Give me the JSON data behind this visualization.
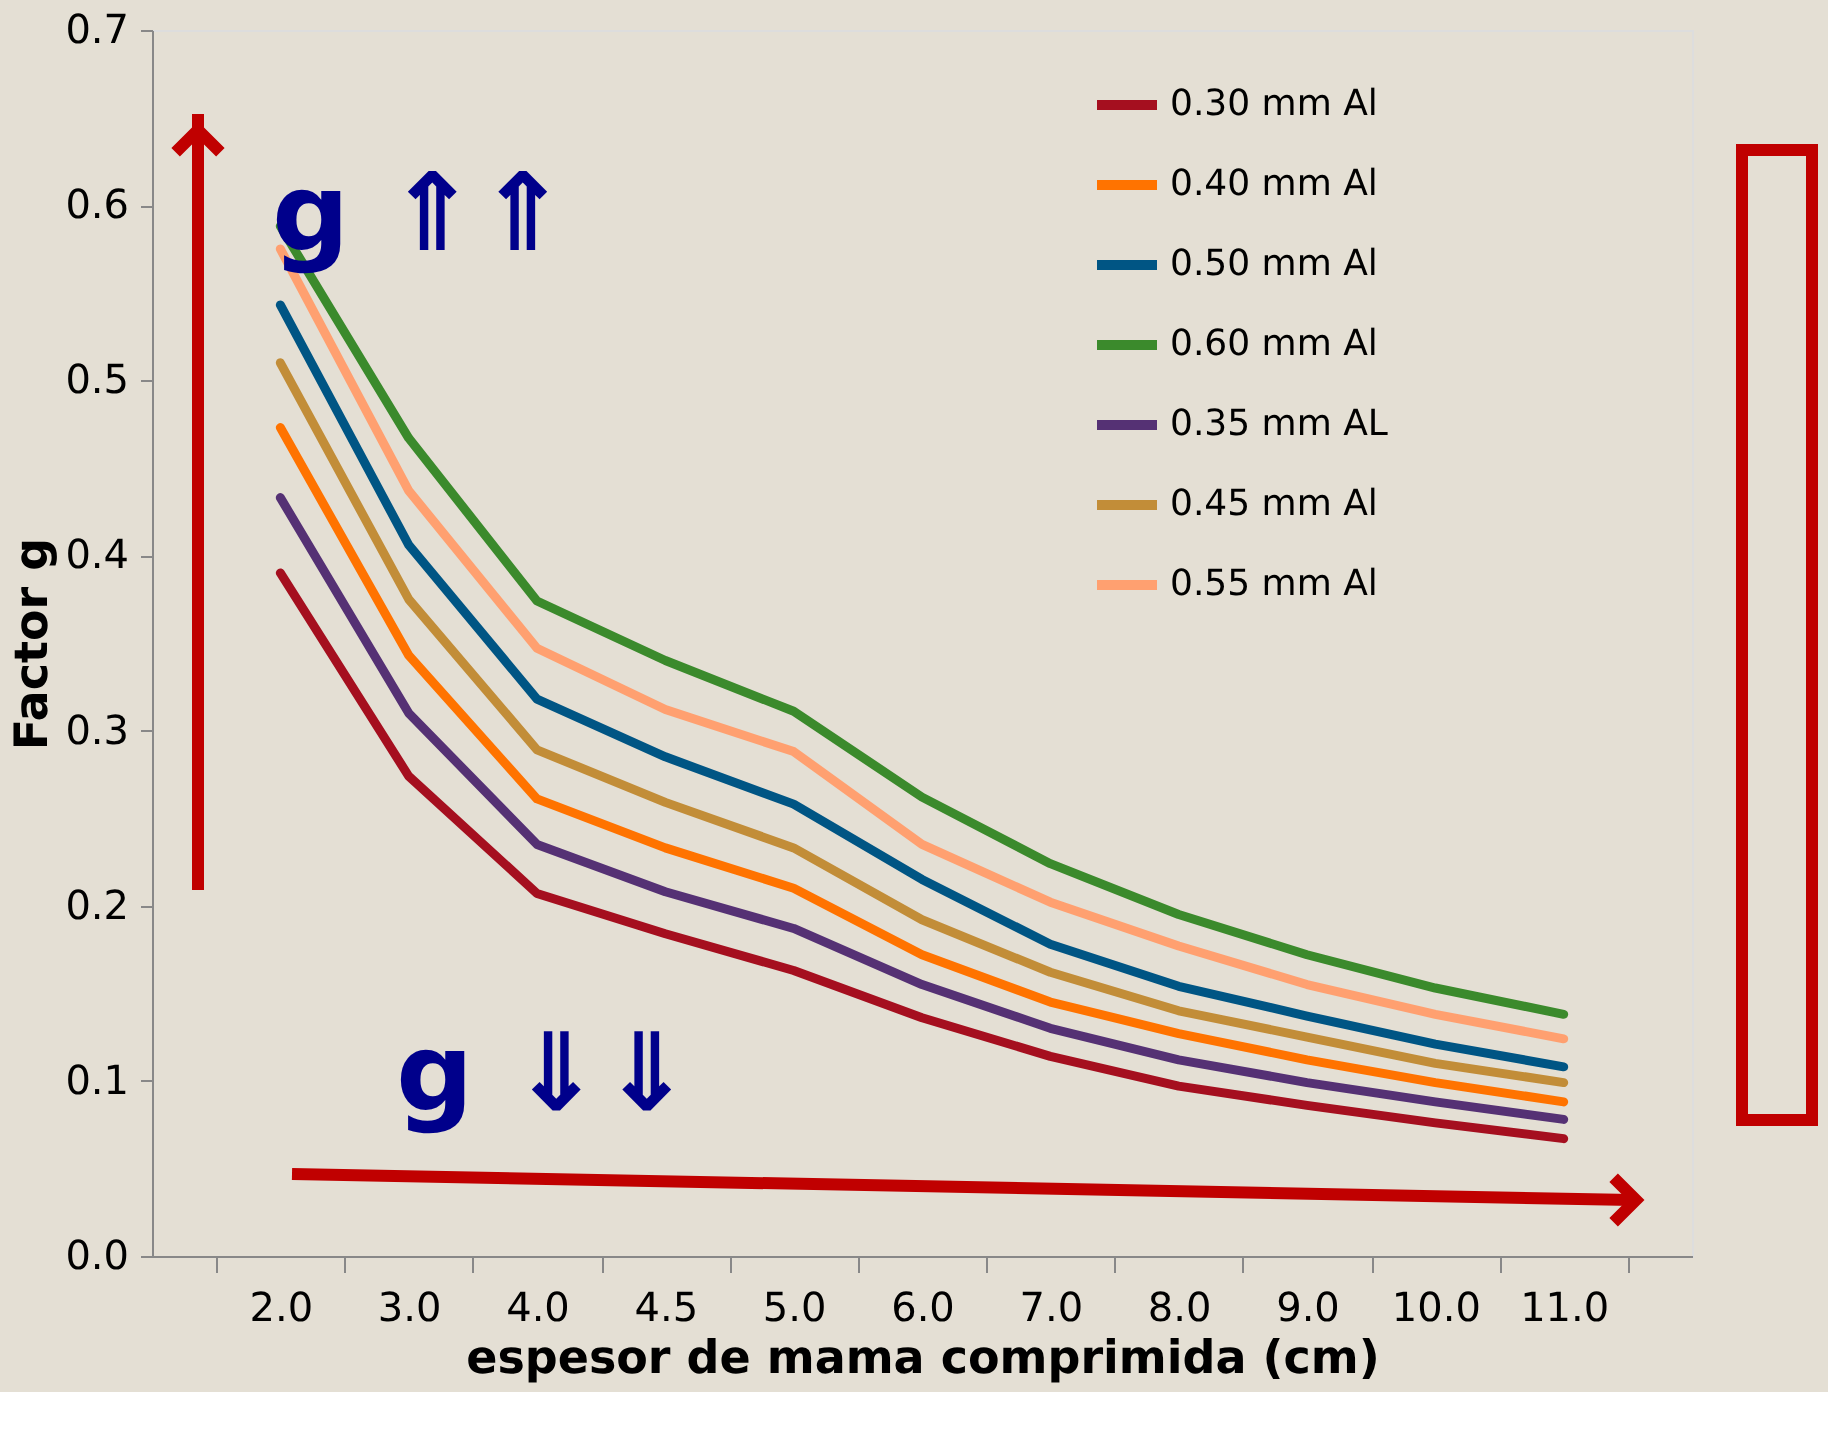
{
  "chart_data": {
    "type": "line",
    "xlabel": "espesor de mama comprimida (cm)",
    "ylabel": "Factor g",
    "categories": [
      "2.0",
      "3.0",
      "4.0",
      "4.5",
      "5.0",
      "6.0",
      "7.0",
      "8.0",
      "9.0",
      "10.0",
      "11.0"
    ],
    "series": [
      {
        "name": "0.30 mm Al",
        "color": "#a50f1f",
        "values": [
          0.39,
          0.274,
          0.207,
          0.184,
          0.163,
          0.136,
          0.114,
          0.097,
          0.086,
          0.076,
          0.067
        ]
      },
      {
        "name": "0.40 mm Al",
        "color": "#ff7300",
        "values": [
          0.473,
          0.343,
          0.261,
          0.233,
          0.21,
          0.172,
          0.145,
          0.127,
          0.112,
          0.099,
          0.088
        ]
      },
      {
        "name": "0.50 mm Al",
        "color": "#005584",
        "values": [
          0.543,
          0.406,
          0.318,
          0.285,
          0.258,
          0.215,
          0.178,
          0.154,
          0.137,
          0.121,
          0.108
        ]
      },
      {
        "name": "0.60 mm Al",
        "color": "#3b8a2c",
        "values": [
          0.588,
          0.467,
          0.374,
          0.34,
          0.311,
          0.262,
          0.224,
          0.195,
          0.172,
          0.153,
          0.138
        ]
      },
      {
        "name": "0.35 mm AL",
        "color": "#553174",
        "values": [
          0.433,
          0.31,
          0.235,
          0.208,
          0.187,
          0.155,
          0.13,
          0.112,
          0.099,
          0.088,
          0.078
        ]
      },
      {
        "name": "0.45 mm Al",
        "color": "#c28d38",
        "values": [
          0.51,
          0.375,
          0.289,
          0.259,
          0.233,
          0.192,
          0.162,
          0.14,
          0.125,
          0.11,
          0.099
        ]
      },
      {
        "name": "0.55 mm Al",
        "color": "#ffa070",
        "values": [
          0.575,
          0.437,
          0.347,
          0.312,
          0.288,
          0.235,
          0.202,
          0.177,
          0.155,
          0.138,
          0.124
        ]
      }
    ],
    "ylim": [
      0,
      0.7
    ],
    "yticks": [
      {
        "value": 0,
        "label": "0.0"
      },
      0.1,
      0.2,
      0.3,
      0.4,
      0.5,
      0.6,
      0.7
    ],
    "grid": false,
    "legend": "top right",
    "marker": "none",
    "line_style": "solid",
    "annotations": [
      "g ⇑⇑",
      "g ⇓⇓"
    ]
  }
}
